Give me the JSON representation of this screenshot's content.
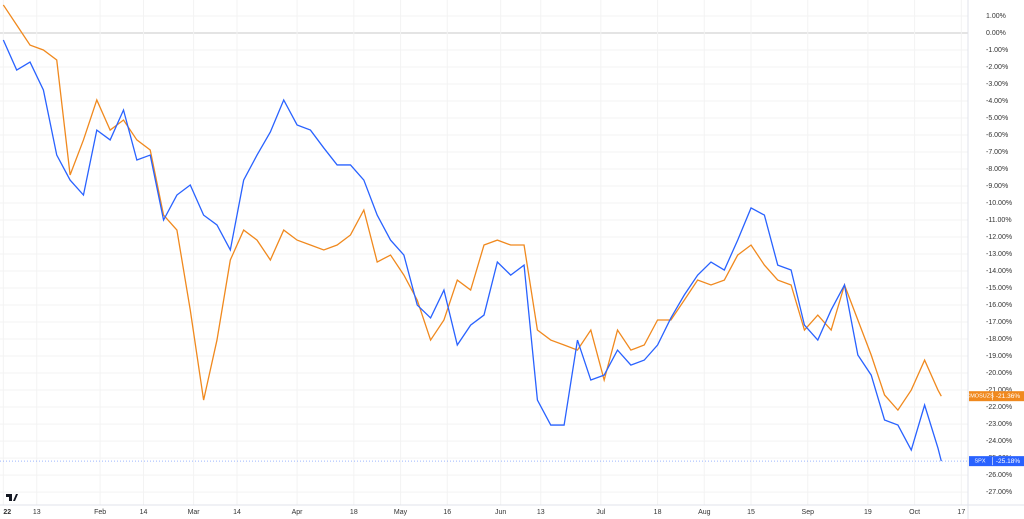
{
  "chart_data": {
    "type": "line",
    "x": [
      0,
      4,
      8,
      12,
      16,
      20,
      24,
      28,
      32,
      36,
      40,
      44,
      48,
      52,
      56,
      60,
      64,
      68,
      72,
      76,
      80,
      84,
      88,
      92,
      96,
      100,
      104,
      108,
      112,
      116,
      120,
      124,
      128,
      132,
      136,
      140,
      144,
      148,
      152,
      156,
      160,
      164,
      168,
      172,
      176,
      180,
      184,
      188,
      192,
      196,
      200,
      204,
      208,
      212,
      216,
      220,
      224,
      228,
      232,
      236,
      240,
      244,
      248,
      252,
      256,
      260,
      264,
      268,
      272,
      276,
      280,
      281
    ],
    "series": [
      {
        "name": "CMOSUZS",
        "color": "#f0891e",
        "end_label": "-21.36%",
        "values": [
          1.65,
          0.47,
          -0.71,
          -1.0,
          -1.59,
          -8.35,
          -6.29,
          -3.94,
          -5.71,
          -5.12,
          -6.29,
          -6.88,
          -10.71,
          -11.59,
          -16.29,
          -21.59,
          -18.06,
          -13.35,
          -11.59,
          -12.18,
          -13.35,
          -11.59,
          -12.18,
          -12.47,
          -12.76,
          -12.47,
          -11.88,
          -10.41,
          -13.47,
          -13.06,
          -14.24,
          -15.71,
          -18.06,
          -16.88,
          -14.53,
          -15.12,
          -12.47,
          -12.18,
          -12.47,
          -12.47,
          -17.47,
          -18.06,
          -18.35,
          -18.65,
          -17.47,
          -20.41,
          -17.47,
          -18.65,
          -18.35,
          -16.88,
          -16.88,
          -15.71,
          -14.53,
          -14.82,
          -14.53,
          -13.06,
          -12.47,
          -13.65,
          -14.53,
          -14.82,
          -17.47,
          -16.59,
          -17.47,
          -14.82,
          -16.88,
          -18.94,
          -21.29,
          -22.18,
          -21.0,
          -19.24,
          -21.0,
          -21.36
        ]
      },
      {
        "name": "SPX",
        "color": "#2962ff",
        "end_label": "-25.18%",
        "values": [
          -0.41,
          -2.18,
          -1.71,
          -3.35,
          -7.18,
          -8.65,
          -9.53,
          -5.71,
          -6.29,
          -4.53,
          -7.47,
          -7.18,
          -11.0,
          -9.53,
          -8.94,
          -10.71,
          -11.29,
          -12.76,
          -8.65,
          -7.18,
          -5.82,
          -3.94,
          -5.41,
          -5.71,
          -6.76,
          -7.76,
          -7.76,
          -8.65,
          -10.71,
          -12.18,
          -13.06,
          -16.0,
          -16.76,
          -15.12,
          -18.35,
          -17.18,
          -16.59,
          -13.47,
          -14.24,
          -13.65,
          -21.59,
          -23.06,
          -23.06,
          -18.06,
          -20.41,
          -20.12,
          -18.65,
          -19.53,
          -19.24,
          -18.35,
          -16.76,
          -15.41,
          -14.24,
          -13.47,
          -13.94,
          -12.18,
          -10.29,
          -10.71,
          -13.65,
          -13.94,
          -17.18,
          -18.06,
          -16.29,
          -14.82,
          -18.94,
          -20.12,
          -22.76,
          -23.06,
          -24.53,
          -21.88,
          -24.41,
          -25.18
        ]
      }
    ],
    "xlim": [
      -1,
      289
    ],
    "xticks": [
      {
        "value": 0,
        "label": "22"
      },
      {
        "value": 10,
        "label": "13"
      },
      {
        "value": 29,
        "label": "Feb"
      },
      {
        "value": 42,
        "label": "14"
      },
      {
        "value": 57,
        "label": "Mar"
      },
      {
        "value": 70,
        "label": "14"
      },
      {
        "value": 88,
        "label": "Apr"
      },
      {
        "value": 105,
        "label": "18"
      },
      {
        "value": 119,
        "label": "May"
      },
      {
        "value": 133,
        "label": "16"
      },
      {
        "value": 149,
        "label": "Jun"
      },
      {
        "value": 161,
        "label": "13"
      },
      {
        "value": 179,
        "label": "Jul"
      },
      {
        "value": 196,
        "label": "18"
      },
      {
        "value": 210,
        "label": "Aug"
      },
      {
        "value": 224,
        "label": "15"
      },
      {
        "value": 241,
        "label": "Sep"
      },
      {
        "value": 259,
        "label": "19"
      },
      {
        "value": 273,
        "label": "Oct"
      },
      {
        "value": 287,
        "label": "17"
      }
    ],
    "ylim": [
      -27.76,
      1.94
    ],
    "yticks": [
      {
        "value": 1,
        "label": "1.00%"
      },
      {
        "value": 0,
        "label": "0.00%"
      },
      {
        "value": -1,
        "label": "-1.00%"
      },
      {
        "value": -2,
        "label": "-2.00%"
      },
      {
        "value": -3,
        "label": "-3.00%"
      },
      {
        "value": -4,
        "label": "-4.00%"
      },
      {
        "value": -5,
        "label": "-5.00%"
      },
      {
        "value": -6,
        "label": "-6.00%"
      },
      {
        "value": -7,
        "label": "-7.00%"
      },
      {
        "value": -8,
        "label": "-8.00%"
      },
      {
        "value": -9,
        "label": "-9.00%"
      },
      {
        "value": -10,
        "label": "-10.00%"
      },
      {
        "value": -11,
        "label": "-11.00%"
      },
      {
        "value": -12,
        "label": "-12.00%"
      },
      {
        "value": -13,
        "label": "-13.00%"
      },
      {
        "value": -14,
        "label": "-14.00%"
      },
      {
        "value": -15,
        "label": "-15.00%"
      },
      {
        "value": -16,
        "label": "-16.00%"
      },
      {
        "value": -17,
        "label": "-17.00%"
      },
      {
        "value": -18,
        "label": "-18.00%"
      },
      {
        "value": -19,
        "label": "-19.00%"
      },
      {
        "value": -20,
        "label": "-20.00%"
      },
      {
        "value": -21,
        "label": "-21.00%"
      },
      {
        "value": -22,
        "label": "-22.00%"
      },
      {
        "value": -23,
        "label": "-23.00%"
      },
      {
        "value": -24,
        "label": "-24.00%"
      },
      {
        "value": -25,
        "label": "-25.00%"
      },
      {
        "value": -26,
        "label": "-26.00%"
      },
      {
        "value": -27,
        "label": "-27.00%"
      }
    ],
    "grid": true
  }
}
